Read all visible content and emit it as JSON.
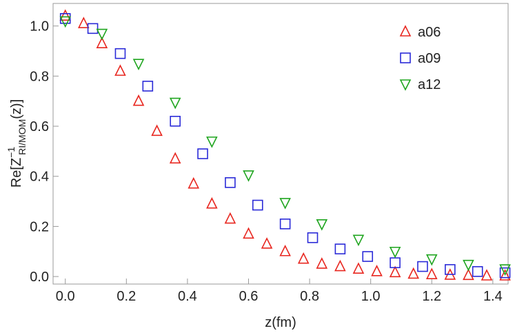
{
  "chart_data": {
    "type": "scatter",
    "xlabel": "z(fm)",
    "ylabel": {
      "base": "Re[Z",
      "sup": "−1",
      "sub": "RI/MOM",
      "tail": "(z)]"
    },
    "xlim": [
      -0.04,
      1.45
    ],
    "ylim": [
      -0.03,
      1.09
    ],
    "xticks": [
      {
        "value": 0,
        "label": "0.0"
      },
      {
        "value": 0.2,
        "label": "0.2"
      },
      {
        "value": 0.4,
        "label": "0.4"
      },
      {
        "value": 0.6,
        "label": "0.6"
      },
      {
        "value": 0.8,
        "label": "0.8"
      },
      {
        "value": 1,
        "label": "1.0"
      },
      {
        "value": 1.2,
        "label": "1.2"
      },
      {
        "value": 1.4,
        "label": "1.4"
      }
    ],
    "yticks": [
      {
        "value": 0,
        "label": "0.0"
      },
      {
        "value": 0.2,
        "label": "0.2"
      },
      {
        "value": 0.4,
        "label": "0.4"
      },
      {
        "value": 0.6,
        "label": "0.6"
      },
      {
        "value": 0.8,
        "label": "0.8"
      },
      {
        "value": 1,
        "label": "1.0"
      }
    ],
    "legend": "upper right",
    "series": [
      {
        "name": "a06",
        "color": "#e8261f",
        "marker": "triangle-up",
        "x": [
          0,
          0.06,
          0.12,
          0.18,
          0.24,
          0.3,
          0.36,
          0.42,
          0.48,
          0.54,
          0.6,
          0.66,
          0.72,
          0.78,
          0.84,
          0.9,
          0.96,
          1.02,
          1.08,
          1.14,
          1.2,
          1.26,
          1.32,
          1.38,
          1.44
        ],
        "values": [
          1.04,
          1.01,
          0.93,
          0.82,
          0.7,
          0.58,
          0.47,
          0.37,
          0.29,
          0.23,
          0.17,
          0.13,
          0.1,
          0.07,
          0.05,
          0.04,
          0.03,
          0.02,
          0.016,
          0.01,
          0.008,
          0.006,
          0.005,
          0.003,
          0.003
        ]
      },
      {
        "name": "a09",
        "color": "#2a2ad8",
        "marker": "square",
        "x": [
          0,
          0.09,
          0.18,
          0.27,
          0.36,
          0.45,
          0.54,
          0.63,
          0.72,
          0.81,
          0.9,
          0.99,
          1.08,
          1.17,
          1.26,
          1.35,
          1.44
        ],
        "values": [
          1.03,
          0.99,
          0.89,
          0.76,
          0.62,
          0.49,
          0.375,
          0.285,
          0.21,
          0.155,
          0.11,
          0.08,
          0.055,
          0.04,
          0.028,
          0.02,
          0.015
        ]
      },
      {
        "name": "a12",
        "color": "#1fa51f",
        "marker": "triangle-down",
        "x": [
          0,
          0.12,
          0.24,
          0.36,
          0.48,
          0.6,
          0.72,
          0.84,
          0.96,
          1.08,
          1.2,
          1.32,
          1.44
        ],
        "values": [
          1.02,
          0.97,
          0.85,
          0.695,
          0.54,
          0.405,
          0.295,
          0.21,
          0.148,
          0.1,
          0.07,
          0.048,
          0.03
        ]
      }
    ]
  }
}
